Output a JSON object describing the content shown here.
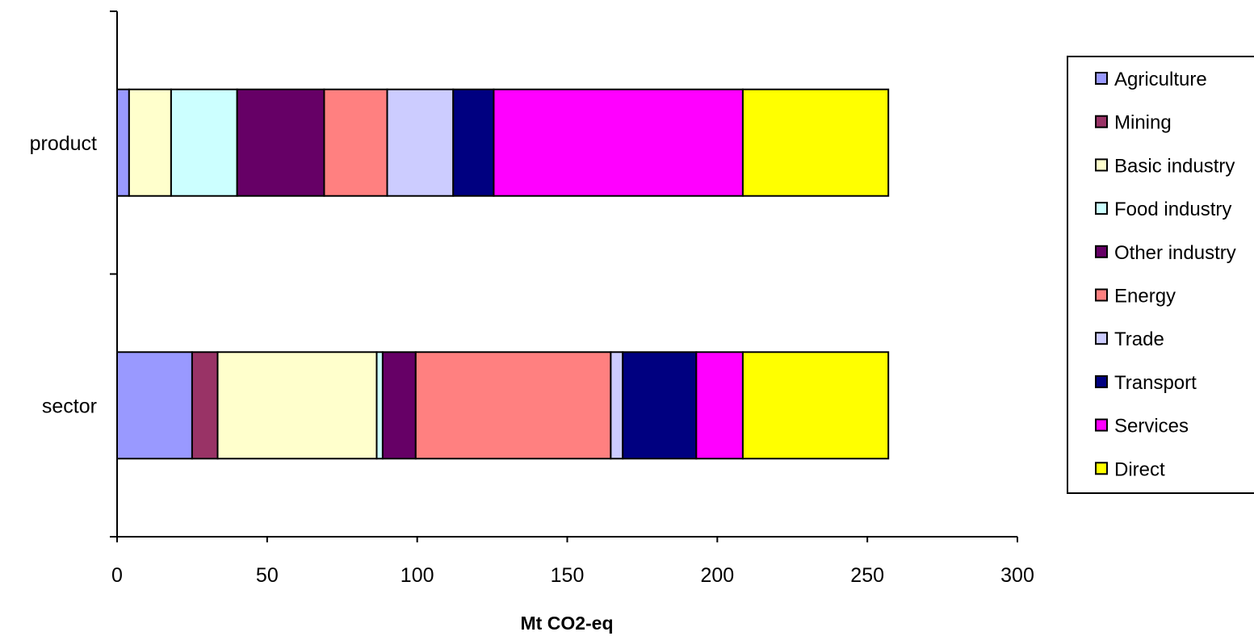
{
  "chart_data": {
    "type": "bar",
    "orientation": "horizontal",
    "stacked": true,
    "title": "",
    "xlabel": "Mt CO2-eq",
    "ylabel": "",
    "categories": [
      "product",
      "sector"
    ],
    "xlim": [
      0,
      300
    ],
    "xticks": [
      "0",
      "50",
      "100",
      "150",
      "200",
      "250",
      "300"
    ],
    "grid": false,
    "legend_position": "right",
    "series": [
      {
        "name": "Agriculture",
        "color": "#9999FF",
        "values": [
          4,
          25
        ]
      },
      {
        "name": "Mining",
        "color": "#993366",
        "values": [
          0,
          8.5
        ]
      },
      {
        "name": "Basic industry",
        "color": "#FFFFCC",
        "values": [
          14,
          53
        ]
      },
      {
        "name": "Food industry",
        "color": "#CCFFFF",
        "values": [
          22,
          2
        ]
      },
      {
        "name": "Other industry",
        "color": "#660066",
        "values": [
          29,
          11
        ]
      },
      {
        "name": "Energy",
        "color": "#FF8080",
        "values": [
          21,
          65
        ]
      },
      {
        "name": "Trade",
        "color": "#CCCCFF",
        "values": [
          22,
          4
        ]
      },
      {
        "name": "Transport",
        "color": "#000080",
        "values": [
          13.5,
          24.5
        ]
      },
      {
        "name": "Services",
        "color": "#FF00FF",
        "values": [
          83,
          15.5
        ]
      },
      {
        "name": "Direct",
        "color": "#FFFF00",
        "values": [
          48.5,
          48.5
        ]
      }
    ]
  }
}
